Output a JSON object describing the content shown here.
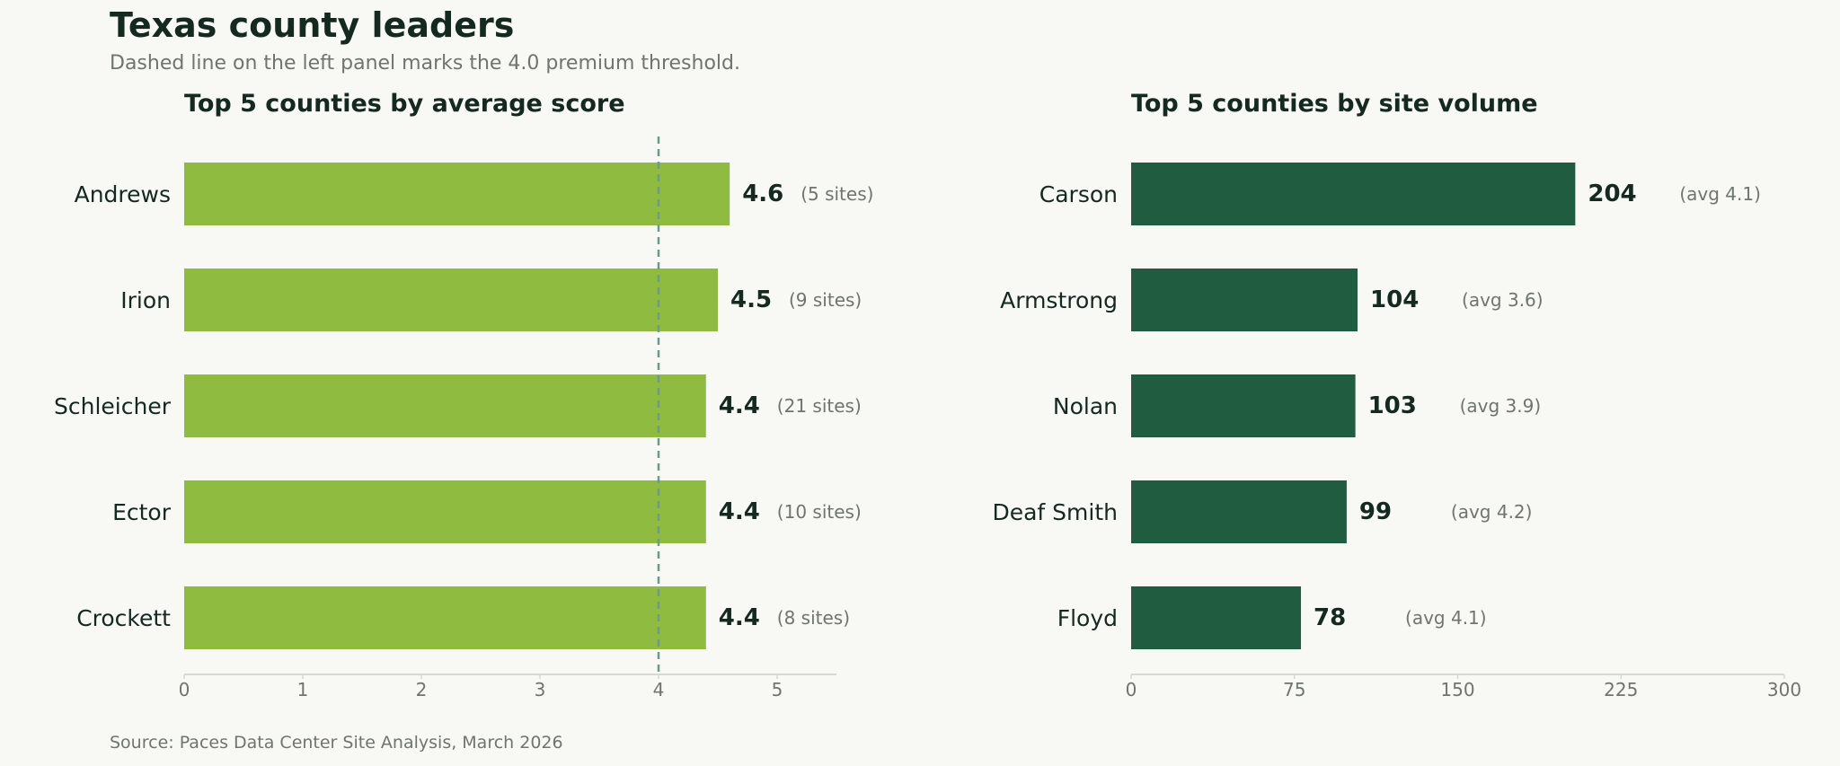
{
  "title": "Texas county leaders",
  "subtitle": "Dashed line on the left panel marks the 4.0 premium threshold.",
  "source": "Source: Paces Data Center Site Analysis, March 2026",
  "colors": {
    "background": "#f8f8f4",
    "score_bar": "#8fbb40",
    "volume_bar": "#1f5c40",
    "threshold_line": "#6e9a8c",
    "text_dark": "#14291f",
    "text_muted": "#6e756f",
    "axis": "#d6d8d2"
  },
  "chart_data": [
    {
      "type": "bar",
      "orientation": "horizontal",
      "title": "Top 5 counties by average score",
      "categories": [
        "Andrews",
        "Irion",
        "Schleicher",
        "Ector",
        "Crockett"
      ],
      "values": [
        4.6,
        4.5,
        4.4,
        4.4,
        4.4
      ],
      "value_labels": [
        "4.6",
        "4.5",
        "4.4",
        "4.4",
        "4.4"
      ],
      "annotations": [
        "(5 sites)",
        "(9 sites)",
        "(21 sites)",
        "(10 sites)",
        "(8 sites)"
      ],
      "xlim": [
        0,
        5.5
      ],
      "xticks": [
        0,
        1,
        2,
        3,
        4,
        5
      ],
      "xtick_labels": [
        "0",
        "1",
        "2",
        "3",
        "4",
        "5"
      ],
      "threshold": 4.0,
      "xlabel": "",
      "ylabel": "",
      "grid": false
    },
    {
      "type": "bar",
      "orientation": "horizontal",
      "title": "Top 5 counties by site volume",
      "categories": [
        "Carson",
        "Armstrong",
        "Nolan",
        "Deaf Smith",
        "Floyd"
      ],
      "values": [
        204,
        104,
        103,
        99,
        78
      ],
      "value_labels": [
        "204",
        "104",
        "103",
        "99",
        "78"
      ],
      "annotations": [
        "(avg 4.1)",
        "(avg 3.6)",
        "(avg 3.9)",
        "(avg 4.2)",
        "(avg 4.1)"
      ],
      "xlim": [
        0,
        300
      ],
      "xticks": [
        0,
        75,
        150,
        225,
        300
      ],
      "xtick_labels": [
        "0",
        "75",
        "150",
        "225",
        "300"
      ],
      "xlabel": "",
      "ylabel": "",
      "grid": false
    }
  ]
}
